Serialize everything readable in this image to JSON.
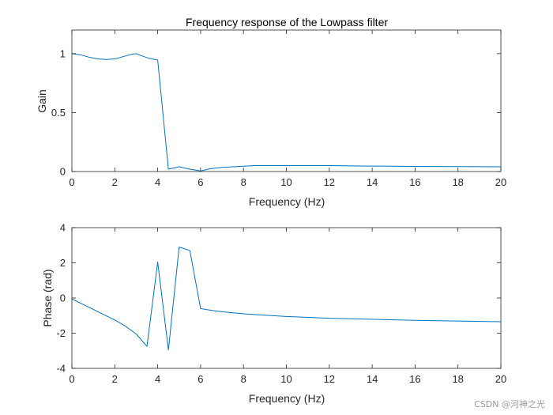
{
  "chart_data": [
    {
      "type": "line",
      "title": "Frequency response of the Lowpass filter",
      "xlabel": "Frequency (Hz)",
      "ylabel": "Gain",
      "xlim": [
        0,
        20
      ],
      "ylim": [
        0,
        1.2
      ],
      "xticks": [
        0,
        2,
        4,
        6,
        8,
        10,
        12,
        14,
        16,
        18,
        20
      ],
      "yticks": [
        0,
        0.5,
        1
      ],
      "ytick_labels": [
        "0",
        "0.5",
        "1"
      ],
      "grid": false,
      "series": [
        {
          "name": "gain",
          "color": "#0072bd",
          "x": [
            0,
            0.4,
            0.8,
            1.2,
            1.6,
            2.0,
            2.4,
            2.8,
            3.0,
            3.2,
            3.6,
            4.0,
            4.5,
            5.0,
            5.5,
            6.0,
            6.5,
            7.0,
            7.5,
            8.0,
            8.5,
            9.0,
            10.0,
            11.0,
            12.0,
            13.0,
            14.0,
            15.0,
            16.0,
            17.0,
            18.0,
            19.0,
            20.0
          ],
          "values": [
            1.0,
            0.99,
            0.97,
            0.955,
            0.95,
            0.955,
            0.975,
            0.995,
            1.0,
            0.985,
            0.96,
            0.945,
            0.02,
            0.04,
            0.02,
            0.005,
            0.025,
            0.035,
            0.04,
            0.045,
            0.05,
            0.05,
            0.05,
            0.05,
            0.05,
            0.048,
            0.046,
            0.045,
            0.044,
            0.043,
            0.042,
            0.041,
            0.04
          ]
        }
      ]
    },
    {
      "type": "line",
      "title": "",
      "xlabel": "Frequency (Hz)",
      "ylabel": "Phase (rad)",
      "xlim": [
        0,
        20
      ],
      "ylim": [
        -4,
        4
      ],
      "xticks": [
        0,
        2,
        4,
        6,
        8,
        10,
        12,
        14,
        16,
        18,
        20
      ],
      "yticks": [
        -4,
        -2,
        0,
        2,
        4
      ],
      "ytick_labels": [
        "-4",
        "-2",
        "0",
        "2",
        "4"
      ],
      "grid": false,
      "series": [
        {
          "name": "phase",
          "color": "#0072bd",
          "x": [
            0,
            0.5,
            1.0,
            1.5,
            2.0,
            2.5,
            3.0,
            3.5,
            4.0,
            4.5,
            5.0,
            5.5,
            6.0,
            6.5,
            7.0,
            8.0,
            9.0,
            10.0,
            11.0,
            12.0,
            13.0,
            14.0,
            15.0,
            16.0,
            17.0,
            18.0,
            19.0,
            20.0
          ],
          "values": [
            -0.05,
            -0.35,
            -0.65,
            -0.95,
            -1.25,
            -1.6,
            -2.05,
            -2.75,
            2.05,
            -2.95,
            2.9,
            2.7,
            -0.6,
            -0.7,
            -0.78,
            -0.9,
            -0.98,
            -1.05,
            -1.1,
            -1.15,
            -1.18,
            -1.21,
            -1.24,
            -1.27,
            -1.29,
            -1.31,
            -1.33,
            -1.35
          ]
        }
      ]
    }
  ],
  "watermark": "CSDN @河神之光"
}
